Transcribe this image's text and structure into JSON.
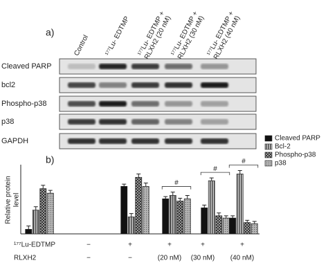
{
  "blot": {
    "panel_label": "a)",
    "lanes": [
      [
        "Control"
      ],
      [
        "¹⁷⁷Lu- EDTMP"
      ],
      [
        "¹⁷⁷Lu- EDTMP +",
        "RLXH2 (20 nM)"
      ],
      [
        "¹⁷⁷Lu- EDTMP +",
        "RLXH2 (30 nM)"
      ],
      [
        "¹⁷⁷Lu- EDTMP +",
        "RLXH2 (40 nM)"
      ]
    ],
    "rows": [
      "Cleaved PARP",
      "bcl2",
      "Phospho-p38",
      "p38",
      "GAPDH"
    ]
  },
  "chart_data": {
    "type": "bar",
    "panel_label": "b)",
    "ylabel": [
      "Relative protein",
      "level"
    ],
    "categories": [
      null,
      null,
      null,
      null,
      null
    ],
    "ylim": [
      0,
      6
    ],
    "series": [
      {
        "name": "Cleaved PARP",
        "color": "#111111",
        "pattern": "solid",
        "values": [
          0.4,
          4.2,
          3.1,
          2.3,
          1.4
        ],
        "errors": [
          0.3,
          0.2,
          0.2,
          0.25,
          0.2
        ]
      },
      {
        "name": "Bcl-2",
        "color": "#d0d0d0",
        "pattern": "stripes",
        "values": [
          2.1,
          1.5,
          3.4,
          4.7,
          5.3
        ],
        "errors": [
          0.3,
          0.3,
          0.3,
          0.25,
          0.3
        ]
      },
      {
        "name": "Phospho-p38",
        "color": "#9a9a9a",
        "pattern": "checker",
        "values": [
          4.0,
          5.0,
          2.9,
          1.6,
          1.0
        ],
        "errors": [
          0.3,
          0.3,
          0.25,
          0.25,
          0.2
        ]
      },
      {
        "name": "p38",
        "color": "#b5b5b5",
        "pattern": "dots",
        "values": [
          3.6,
          4.2,
          3.1,
          1.4,
          0.9
        ],
        "errors": [
          0.25,
          0.3,
          0.3,
          0.2,
          0.2
        ]
      }
    ],
    "significance_labels": [
      null,
      null,
      "#",
      "#",
      "#"
    ],
    "treatment_rows": [
      {
        "label": "¹⁷⁷Lu-EDTMP",
        "values": [
          "−",
          "+",
          "+",
          "+",
          "+"
        ]
      },
      {
        "label": "RLXH2",
        "values": [
          "−",
          "−",
          "(20 nM)",
          "(30 nM)",
          "(40 nM)"
        ]
      }
    ]
  }
}
